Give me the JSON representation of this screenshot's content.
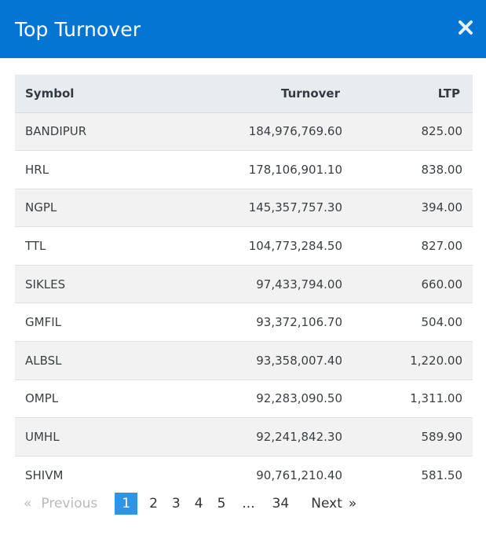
{
  "modal": {
    "title": "Top Turnover"
  },
  "table": {
    "headers": {
      "symbol": "Symbol",
      "turnover": "Turnover",
      "ltp": "LTP"
    },
    "rows": [
      {
        "symbol": "BANDIPUR",
        "turnover": "184,976,769.60",
        "ltp": "825.00"
      },
      {
        "symbol": "HRL",
        "turnover": "178,106,901.10",
        "ltp": "838.00"
      },
      {
        "symbol": "NGPL",
        "turnover": "145,357,757.30",
        "ltp": "394.00"
      },
      {
        "symbol": "TTL",
        "turnover": "104,773,284.50",
        "ltp": "827.00"
      },
      {
        "symbol": "SIKLES",
        "turnover": "97,433,794.00",
        "ltp": "660.00"
      },
      {
        "symbol": "GMFIL",
        "turnover": "93,372,106.70",
        "ltp": "504.00"
      },
      {
        "symbol": "ALBSL",
        "turnover": "93,358,007.40",
        "ltp": "1,220.00"
      },
      {
        "symbol": "OMPL",
        "turnover": "92,283,090.50",
        "ltp": "1,311.00"
      },
      {
        "symbol": "UMHL",
        "turnover": "92,241,842.30",
        "ltp": "589.90"
      },
      {
        "symbol": "SHIVM",
        "turnover": "90,761,210.40",
        "ltp": "581.50"
      }
    ]
  },
  "pagination": {
    "prev_arrow": "«",
    "prev_label": "Previous",
    "pages": [
      "1",
      "2",
      "3",
      "4",
      "5"
    ],
    "ellipsis": "...",
    "last_page": "34",
    "next_label": "Next",
    "next_arrow": "»",
    "current_page": "1"
  },
  "colors": {
    "header_bg": "#0575d3",
    "active_page_bg": "#2c95e8"
  },
  "icons": {
    "close": "close-icon"
  }
}
